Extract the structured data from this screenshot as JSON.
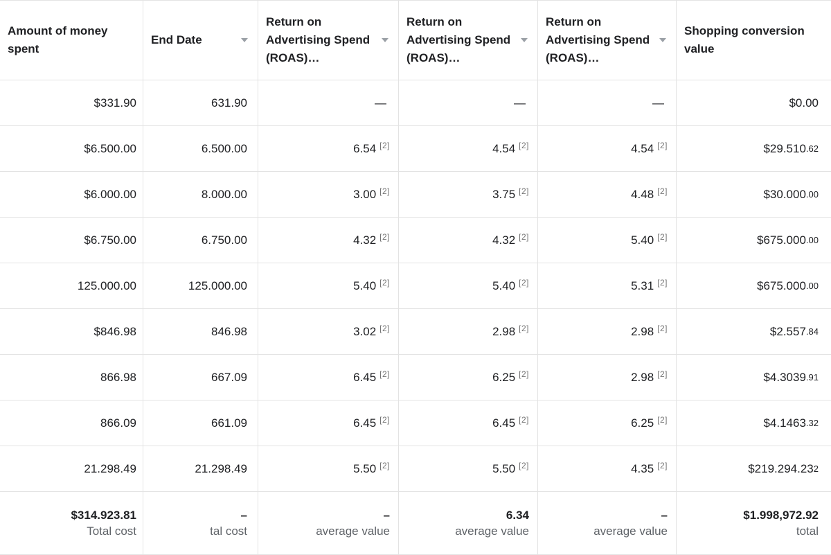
{
  "colors": {
    "text": "#202124",
    "secondary_text": "#5f6368",
    "divider": "#e3e3e3",
    "sort_arrow": "#9aa0a6",
    "background": "#ffffff"
  },
  "table": {
    "columns": [
      {
        "label": "Amount of money spent"
      },
      {
        "label": "End Date"
      },
      {
        "label": "Return on Advertising Spend (ROAS)…"
      },
      {
        "label": "Return on Advertising Spend (ROAS)…"
      },
      {
        "label": "Return on Advertising Spend (ROAS)…"
      },
      {
        "label": "Shopping conversion value"
      }
    ],
    "rows": [
      {
        "spent": "$331.90",
        "end_date": "631.90",
        "roas": [
          {
            "v": "—",
            "n": ""
          },
          {
            "v": "—",
            "n": ""
          },
          {
            "v": "—",
            "n": ""
          }
        ],
        "conv": {
          "main": "$0.00",
          "small": ""
        }
      },
      {
        "spent": "$6.500.00",
        "end_date": "6.500.00",
        "roas": [
          {
            "v": "6.54",
            "n": "[2]"
          },
          {
            "v": "4.54",
            "n": "[2]"
          },
          {
            "v": "4.54",
            "n": "[2]"
          }
        ],
        "conv": {
          "main": "$29.510",
          "small": ".62"
        }
      },
      {
        "spent": "$6.000.00",
        "end_date": "8.000.00",
        "roas": [
          {
            "v": "3.00",
            "n": "[2]"
          },
          {
            "v": "3.75",
            "n": "[2]"
          },
          {
            "v": "4.48",
            "n": "[2]"
          }
        ],
        "conv": {
          "main": "$30.000",
          "small": ".00"
        }
      },
      {
        "spent": "$6.750.00",
        "end_date": "6.750.00",
        "roas": [
          {
            "v": "4.32",
            "n": "[2]"
          },
          {
            "v": "4.32",
            "n": "[2]"
          },
          {
            "v": "5.40",
            "n": "[2]"
          }
        ],
        "conv": {
          "main": "$675.000",
          "small": ".00"
        }
      },
      {
        "spent": "125.000.00",
        "end_date": "125.000.00",
        "roas": [
          {
            "v": "5.40",
            "n": "[2]"
          },
          {
            "v": "5.40",
            "n": "[2]"
          },
          {
            "v": "5.31",
            "n": "[2]"
          }
        ],
        "conv": {
          "main": "$675.000",
          "small": ".00"
        }
      },
      {
        "spent": "$846.98",
        "end_date": "846.98",
        "roas": [
          {
            "v": "3.02",
            "n": "[2]"
          },
          {
            "v": "2.98",
            "n": "[2]"
          },
          {
            "v": "2.98",
            "n": "[2]"
          }
        ],
        "conv": {
          "main": "$2.557",
          "small": ".84"
        }
      },
      {
        "spent": "866.98",
        "end_date": "667.09",
        "roas": [
          {
            "v": "6.45",
            "n": "[2]"
          },
          {
            "v": "6.25",
            "n": "[2]"
          },
          {
            "v": "2.98",
            "n": "[2]"
          }
        ],
        "conv": {
          "main": "$4.3039",
          "small": ".91"
        }
      },
      {
        "spent": "866.09",
        "end_date": "661.09",
        "roas": [
          {
            "v": "6.45",
            "n": "[2]"
          },
          {
            "v": "6.45",
            "n": "[2]"
          },
          {
            "v": "6.25",
            "n": "[2]"
          }
        ],
        "conv": {
          "main": "$4.1463",
          "small": ".32"
        }
      },
      {
        "spent": "21.298.49",
        "end_date": "21.298.49",
        "roas": [
          {
            "v": "5.50",
            "n": "[2]"
          },
          {
            "v": "5.50",
            "n": "[2]"
          },
          {
            "v": "4.35",
            "n": "[2]"
          }
        ],
        "conv": {
          "main": "$219.294.23",
          "small": "2"
        }
      }
    ],
    "totals": {
      "spent": {
        "value": "$314.923.81",
        "label": "Total cost"
      },
      "end_date": {
        "value": "–",
        "label": "tal cost"
      },
      "roas": [
        {
          "value": "–",
          "label": "average value"
        },
        {
          "value": "6.34",
          "label": "average value"
        },
        {
          "value": "–",
          "label": "average value"
        }
      ],
      "conv": {
        "value": "$1.998,972.92",
        "label": "total"
      }
    }
  }
}
